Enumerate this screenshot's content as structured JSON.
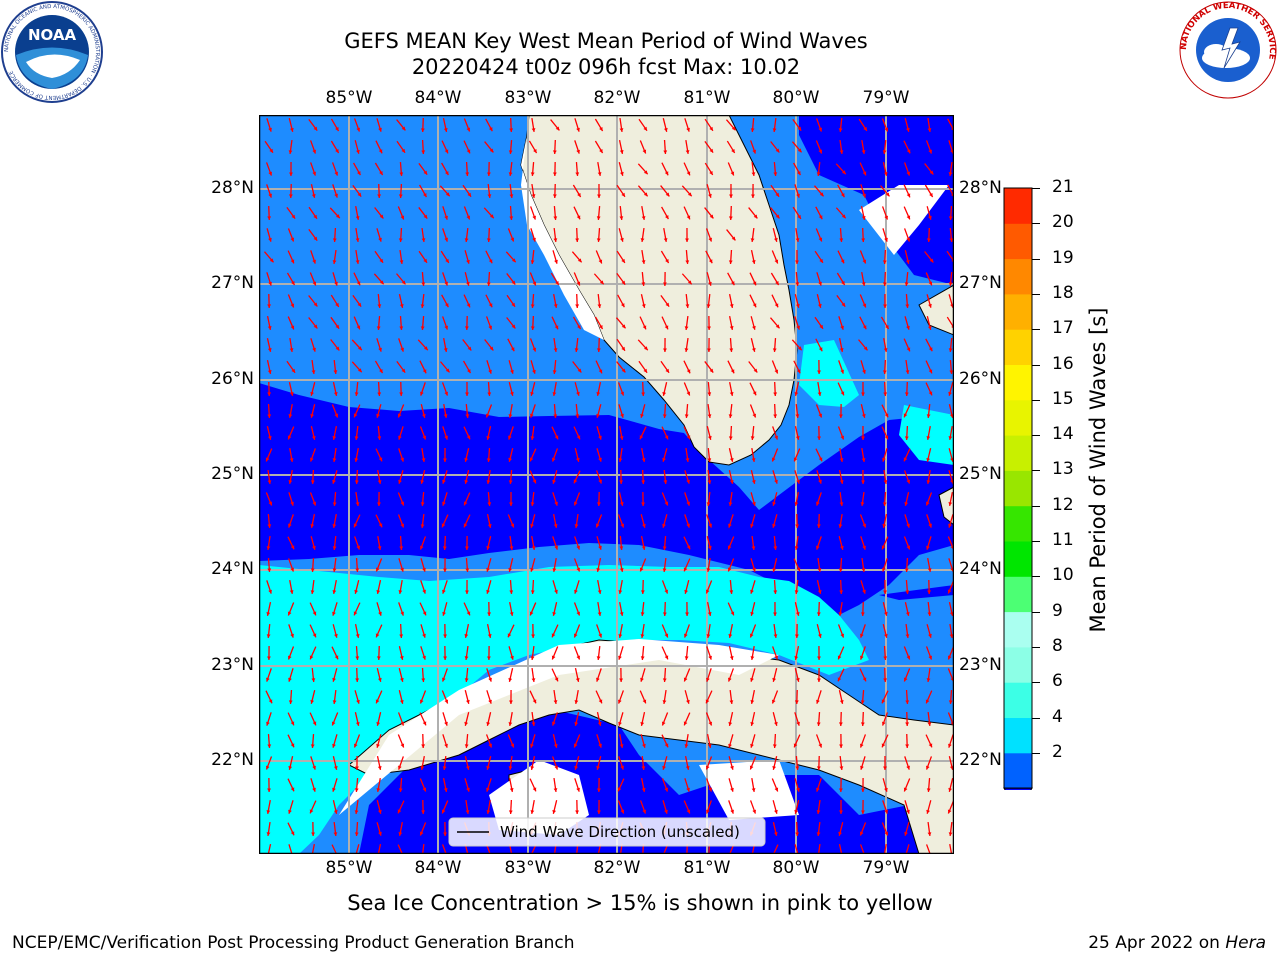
{
  "title": {
    "line1": "GEFS MEAN Key West Mean Period of Wind Waves",
    "line2": "20220424 t00z 096h fcst   Max: 10.02"
  },
  "map": {
    "lon_ticks": [
      "85°W",
      "84°W",
      "83°W",
      "82°W",
      "81°W",
      "80°W",
      "79°W"
    ],
    "lat_ticks": [
      "28°N",
      "27°N",
      "26°N",
      "25°N",
      "24°N",
      "23°N",
      "22°N"
    ],
    "legend_label": "Wind Wave Direction (unscaled)",
    "colors": {
      "band_2_4": "#1e8cff",
      "band_below_2": "#0000ff",
      "band_4_6": "#00ffff",
      "band_6_8": "#5dffe8",
      "land": "#efeedd",
      "arrow": "#ff0000"
    }
  },
  "colorbar": {
    "label": "Mean Period of Wind Waves [s]",
    "ticks": [
      "2",
      "4",
      "6",
      "8",
      "9",
      "10",
      "11",
      "12",
      "13",
      "14",
      "15",
      "16",
      "17",
      "18",
      "19",
      "20",
      "21"
    ],
    "colors": [
      "#0062ff",
      "#00e1ff",
      "#3cffe6",
      "#8cffe6",
      "#aafff0",
      "#4cff74",
      "#00e600",
      "#36e600",
      "#99e600",
      "#c8f000",
      "#e8f400",
      "#fff400",
      "#ffd200",
      "#ffb000",
      "#ff8800",
      "#ff5a00",
      "#ff2a00",
      "#ff0000"
    ]
  },
  "logos": {
    "noaa": {
      "text": "NOAA",
      "ring_text": "NATIONAL OCEANIC AND ATMOSPHERIC ADMINISTRATION · U.S. DEPARTMENT OF COMMERCE"
    },
    "nws": {
      "ring_text": "NATIONAL WEATHER SERVICE"
    }
  },
  "note": "Sea Ice Concentration > 15% is shown in pink to yellow",
  "footer": {
    "left": "NCEP/EMC/Verification Post Processing Product Generation Branch",
    "right_prefix": "25 Apr 2022 on ",
    "right_host": "Hera"
  }
}
